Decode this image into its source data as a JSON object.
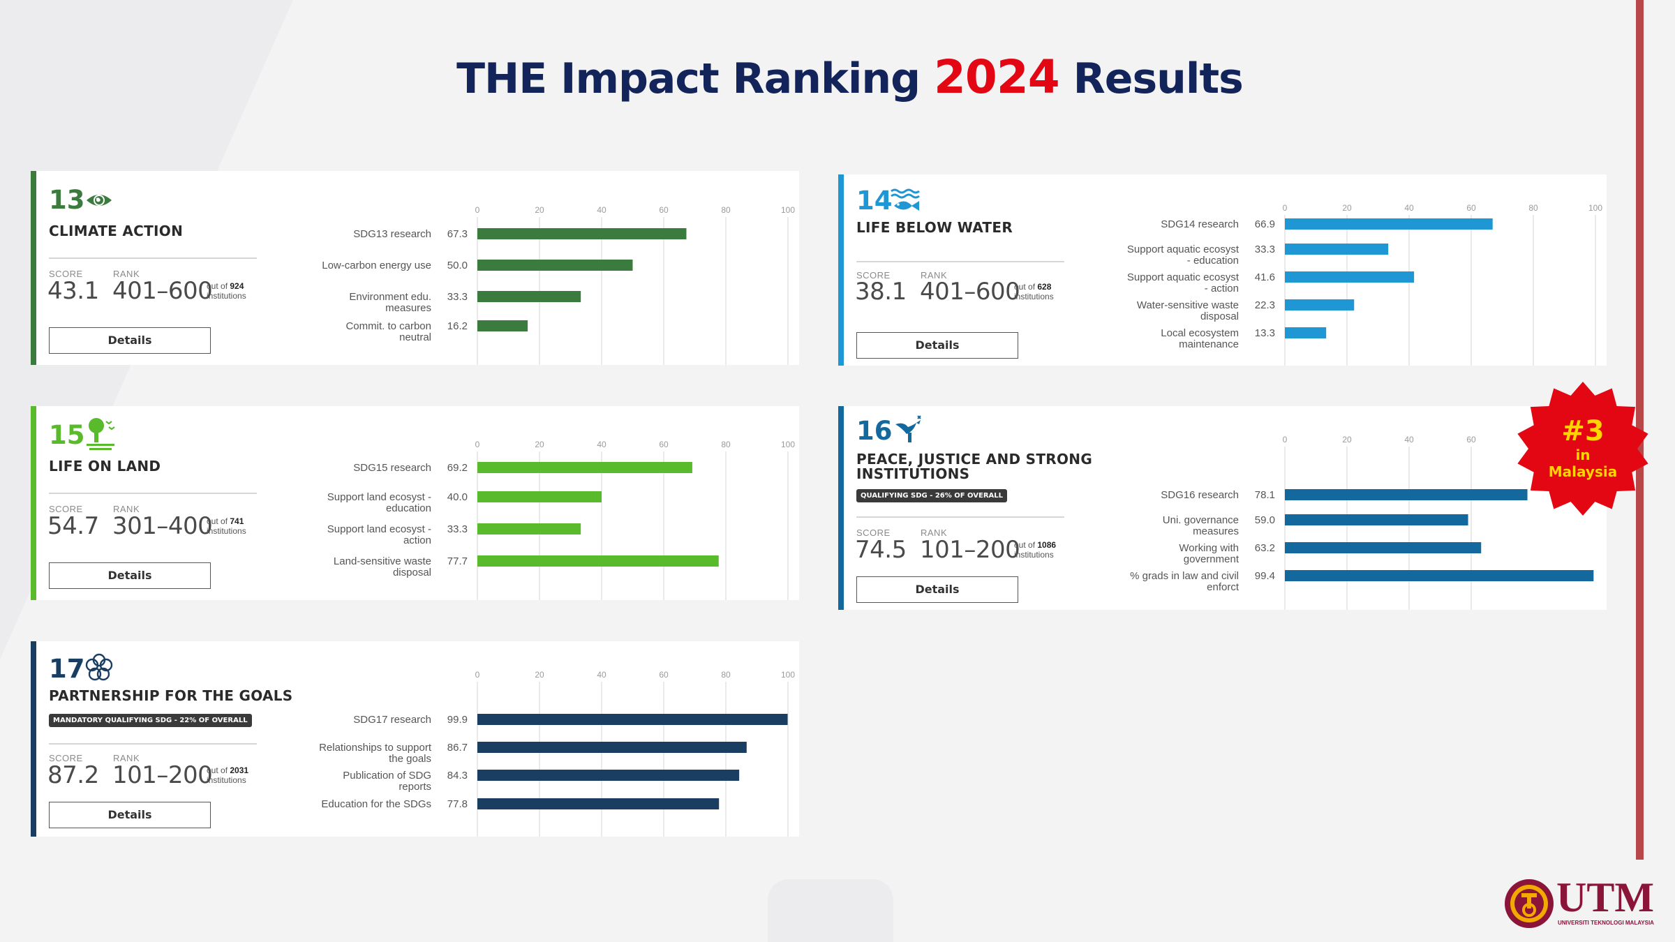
{
  "title": {
    "main": "THE Impact Ranking",
    "year": "2024",
    "suffix": "Results"
  },
  "labels": {
    "score": "SCORE",
    "rank": "RANK",
    "out_of": "out of",
    "institutions": "institutions",
    "details": "Details"
  },
  "cards": [
    {
      "number": "13",
      "name": "CLIMATE ACTION",
      "qualifying": "",
      "score": "43.1",
      "rank": "401–600",
      "total": "924",
      "accent": "#3c7b3e",
      "icon": "globe-eye-icon"
    },
    {
      "number": "14",
      "name": "LIFE BELOW WATER",
      "qualifying": "",
      "score": "38.1",
      "rank": "401–600",
      "total": "628",
      "accent": "#1f97d4",
      "icon": "fish-waves-icon"
    },
    {
      "number": "15",
      "name": "LIFE ON LAND",
      "qualifying": "",
      "score": "54.7",
      "rank": "301–400",
      "total": "741",
      "accent": "#59ba2c",
      "icon": "tree-birds-icon"
    },
    {
      "number": "16",
      "name_lines": [
        "PEACE, JUSTICE AND STRONG",
        "INSTITUTIONS"
      ],
      "qualifying": "QUALIFYING SDG - 26% OF OVERALL",
      "score": "74.5",
      "rank": "101–200",
      "total": "1086",
      "accent": "#13689d",
      "icon": "dove-gavel-icon"
    },
    {
      "number": "17",
      "name": "PARTNERSHIP FOR THE GOALS",
      "qualifying": "MANDATORY QUALIFYING SDG - 22% OF OVERALL",
      "score": "87.2",
      "rank": "101–200",
      "total": "2031",
      "accent": "#1a3d62",
      "icon": "flower-rings-icon"
    }
  ],
  "chart_data": [
    {
      "type": "bar",
      "orientation": "horizontal",
      "sdg": "13",
      "xlim": [
        0,
        100
      ],
      "ticks": [
        0,
        20,
        40,
        60,
        80,
        100
      ],
      "grid": true,
      "color": "#3c7b3e",
      "categories": [
        [
          "SDG13 research"
        ],
        [
          "Low-carbon energy use"
        ],
        [
          "Environment edu.",
          "measures"
        ],
        [
          "Commit. to carbon",
          "neutral"
        ]
      ],
      "values": [
        67.3,
        50.0,
        33.3,
        16.2
      ],
      "value_labels": [
        "67.3",
        "50.0",
        "33.3",
        "16.2"
      ]
    },
    {
      "type": "bar",
      "orientation": "horizontal",
      "sdg": "14",
      "xlim": [
        0,
        100
      ],
      "ticks": [
        0,
        20,
        40,
        60,
        80,
        100
      ],
      "grid": true,
      "color": "#1f97d4",
      "categories": [
        [
          "SDG14 research"
        ],
        [
          "Support aquatic ecosyst",
          "- education"
        ],
        [
          "Support aquatic ecosyst",
          "- action"
        ],
        [
          "Water-sensitive waste",
          "disposal"
        ],
        [
          "Local ecosystem",
          "maintenance"
        ]
      ],
      "values": [
        66.9,
        33.3,
        41.6,
        22.3,
        13.3
      ],
      "value_labels": [
        "66.9",
        "33.3",
        "41.6",
        "22.3",
        "13.3"
      ]
    },
    {
      "type": "bar",
      "orientation": "horizontal",
      "sdg": "15",
      "xlim": [
        0,
        100
      ],
      "ticks": [
        0,
        20,
        40,
        60,
        80,
        100
      ],
      "grid": true,
      "color": "#59ba2c",
      "categories": [
        [
          "SDG15 research"
        ],
        [
          "Support land ecosyst -",
          "education"
        ],
        [
          "Support land ecosyst -",
          "action"
        ],
        [
          "Land-sensitive waste",
          "disposal"
        ]
      ],
      "values": [
        69.2,
        40.0,
        33.3,
        77.7
      ],
      "value_labels": [
        "69.2",
        "40.0",
        "33.3",
        "77.7"
      ]
    },
    {
      "type": "bar",
      "orientation": "horizontal",
      "sdg": "16",
      "xlim": [
        0,
        100
      ],
      "ticks": [
        0,
        20,
        40,
        60
      ],
      "grid": true,
      "color": "#13689d",
      "categories": [
        [
          "SDG16 research"
        ],
        [
          "Uni. governance",
          "measures"
        ],
        [
          "Working with",
          "government"
        ],
        [
          "% grads in law and civil",
          "enforct"
        ]
      ],
      "values": [
        78.1,
        59.0,
        63.2,
        99.4
      ],
      "value_labels": [
        "78.1",
        "59.0",
        "63.2",
        "99.4"
      ]
    },
    {
      "type": "bar",
      "orientation": "horizontal",
      "sdg": "17",
      "xlim": [
        0,
        100
      ],
      "ticks": [
        0,
        20,
        40,
        60,
        80,
        100
      ],
      "grid": true,
      "color": "#1a3d62",
      "categories": [
        [
          "SDG17 research"
        ],
        [
          "Relationships to support",
          "the goals"
        ],
        [
          "Publication of SDG",
          "reports"
        ],
        [
          "Education for the SDGs"
        ]
      ],
      "values": [
        99.9,
        86.7,
        84.3,
        77.8
      ],
      "value_labels": [
        "99.9",
        "86.7",
        "84.3",
        "77.8"
      ]
    }
  ],
  "badge": {
    "rank": "#3",
    "line1": "in",
    "line2": "Malaysia",
    "color": "#e30613",
    "text_color": "#ffd400"
  },
  "logo": {
    "wordmark": "UTM",
    "subtitle": "UNIVERSITI TEKNOLOGI MALAYSIA",
    "color": "#8a1538"
  }
}
